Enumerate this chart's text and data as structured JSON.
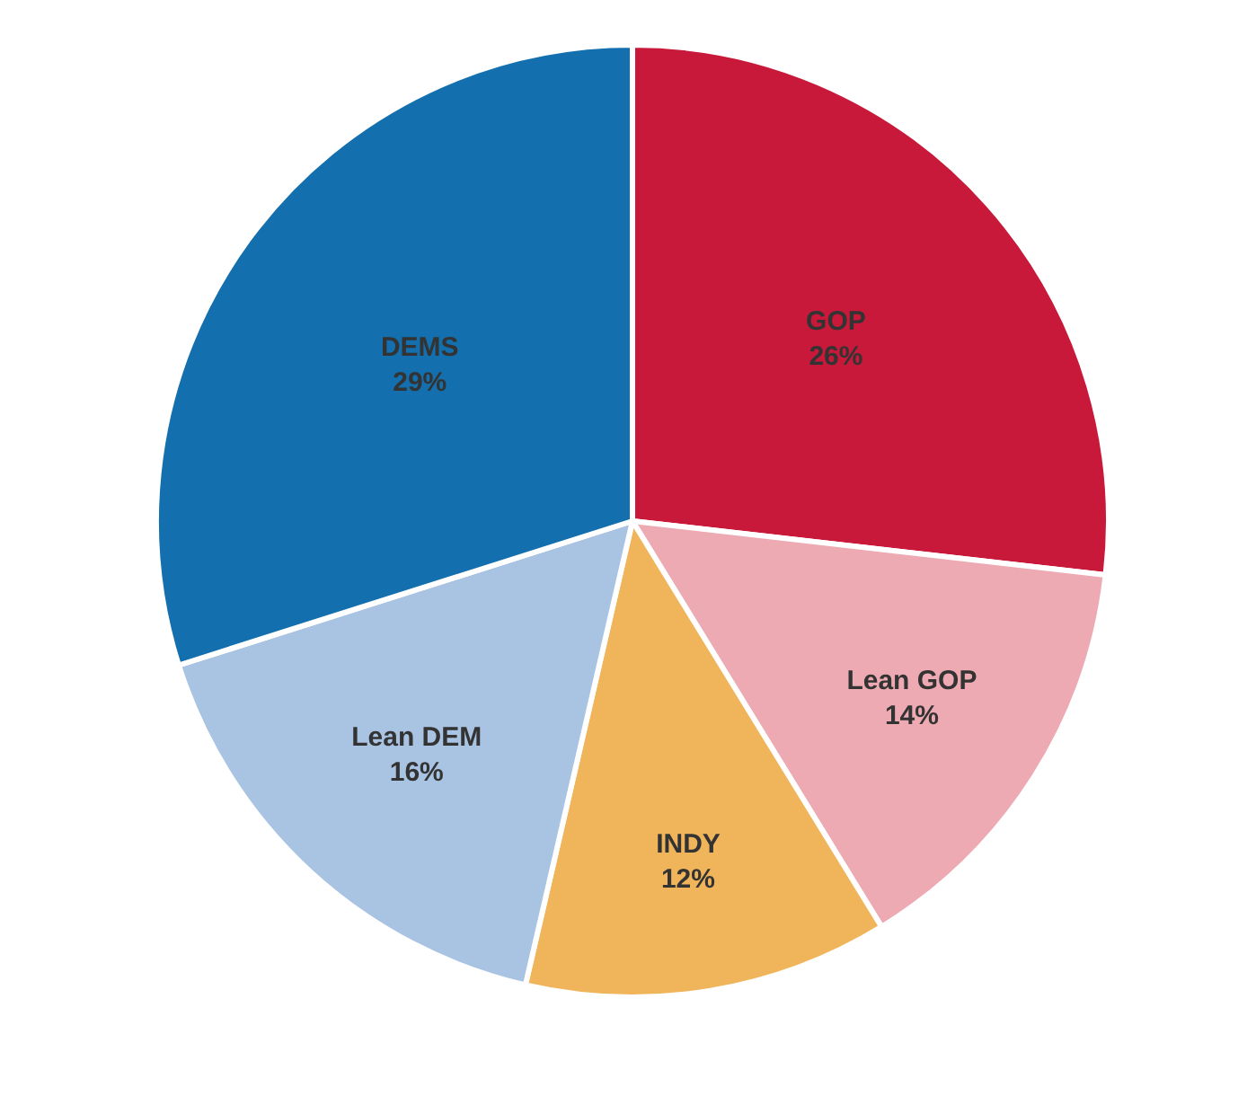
{
  "chart_data": {
    "type": "pie",
    "categories": [
      "GOP",
      "Lean GOP",
      "INDY",
      "Lean DEM",
      "DEMS"
    ],
    "values": [
      26,
      14,
      12,
      16,
      29
    ],
    "value_labels": [
      "26%",
      "14%",
      "12%",
      "16%",
      "29%"
    ],
    "colors": [
      "#c8193a",
      "#eeaab3",
      "#f0b55a",
      "#a9c3e3",
      "#136fad"
    ],
    "legend": false
  }
}
